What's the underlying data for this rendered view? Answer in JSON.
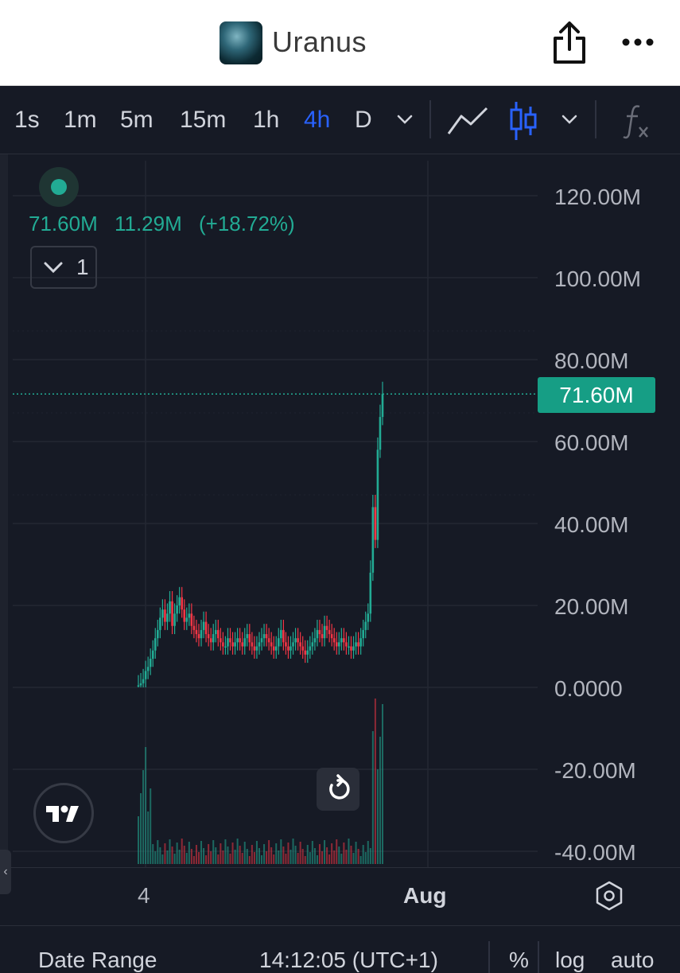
{
  "header": {
    "title": "Uranus",
    "logo_icon": "planet-logo-icon",
    "share_icon": "share-icon",
    "more_icon": "more-icon"
  },
  "toolbar": {
    "timeframes": [
      {
        "label": "1s",
        "active": false
      },
      {
        "label": "1m",
        "active": false
      },
      {
        "label": "5m",
        "active": false
      },
      {
        "label": "15m",
        "active": false
      },
      {
        "label": "1h",
        "active": false
      },
      {
        "label": "4h",
        "active": true
      },
      {
        "label": "D",
        "active": false
      }
    ],
    "active_color": "#2962ff",
    "icons": [
      "chevron-down-icon",
      "line-chart-icon",
      "candlestick-icon",
      "chevron-down-icon",
      "function-icon"
    ]
  },
  "legend": {
    "close": "71.60M",
    "change": "11.29M",
    "change_pct": "(+18.72%)",
    "indicator_count": "1",
    "color": "#22ab94"
  },
  "price_badge": "71.60M",
  "bottom_bar": {
    "date_range": "Date Range",
    "time": "14:12:05 (UTC+1)",
    "percent": "%",
    "log": "log",
    "auto": "auto"
  },
  "chart_data": {
    "type": "candlestick",
    "y_axis": {
      "ticks": [
        "120.00M",
        "100.00M",
        "80.00M",
        "60.00M",
        "40.00M",
        "20.00M",
        "0.0000",
        "-20.00M",
        "-40.00M"
      ],
      "tick_values": [
        120,
        100,
        80,
        60,
        40,
        20,
        0,
        -20,
        -40
      ],
      "unit": "M",
      "range": [
        -44,
        128
      ]
    },
    "x_axis": {
      "ticks": [
        "4",
        "Aug"
      ]
    },
    "last_price": 71.6,
    "up_color": "#22ab94",
    "down_color": "#f23645",
    "series_close": [
      0.5,
      1,
      2,
      4,
      5,
      7,
      9,
      12,
      14,
      17,
      19,
      16,
      18,
      21,
      15,
      18,
      20,
      22,
      19,
      16,
      17,
      18,
      15,
      14,
      13,
      12,
      14,
      16,
      13,
      12,
      11,
      13,
      14,
      12,
      11,
      10,
      10,
      12,
      11,
      10,
      11,
      12,
      11,
      10,
      12,
      13,
      11,
      10,
      9,
      10,
      11,
      12,
      13,
      12,
      11,
      10,
      9,
      10,
      12,
      14,
      11,
      10,
      9,
      10,
      11,
      12,
      11,
      10,
      9,
      8,
      9,
      10,
      11,
      12,
      14,
      13,
      12,
      15,
      14,
      13,
      12,
      11,
      10,
      11,
      12,
      11,
      10,
      10,
      9,
      10,
      11,
      10,
      12,
      14,
      16,
      18,
      28,
      44,
      36,
      58,
      66,
      71.6
    ],
    "volume_note": "volume histogram at bottom of plot"
  }
}
